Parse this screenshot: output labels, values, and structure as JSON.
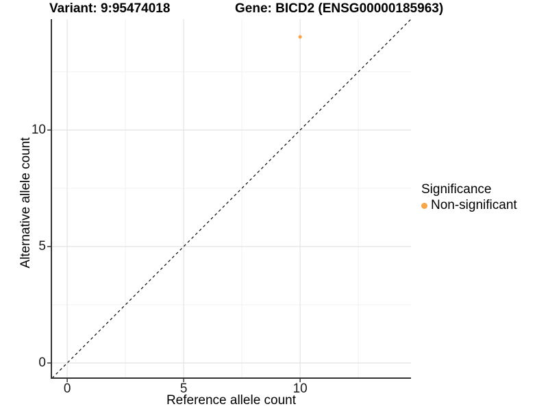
{
  "titles": {
    "variant": "Variant: 9:95474018",
    "gene": "Gene: BICD2 (ENSG00000185963)"
  },
  "legend": {
    "title": "Significance",
    "items": [
      {
        "label": "Non-significant",
        "color": "#F8A546"
      }
    ]
  },
  "chart_data": {
    "type": "scatter",
    "title": "Variant: 9:95474018  /  Gene: BICD2 (ENSG00000185963)",
    "xlabel": "Reference allele count",
    "ylabel": "Alternative allele count",
    "xlim": [
      -0.68,
      14.76
    ],
    "ylim": [
      -0.65,
      14.76
    ],
    "x_ticks": [
      0,
      5,
      10
    ],
    "y_ticks": [
      0,
      5,
      10
    ],
    "x_minor_ticks": [
      2.5,
      7.5,
      12.5
    ],
    "y_minor_ticks": [
      2.5,
      7.5,
      12.5
    ],
    "grid": true,
    "legend_position": "right",
    "series": [
      {
        "name": "Non-significant",
        "color": "#F8A546",
        "points": [
          {
            "x": 10,
            "y": 14
          }
        ]
      }
    ],
    "reference_line": {
      "type": "identity",
      "slope": 1,
      "intercept": 0,
      "style": "dashed",
      "color": "#000000"
    }
  },
  "style": {
    "major_grid_color": "#E3E3E3",
    "minor_grid_color": "#F1F1F1",
    "axis_line_color": "#333333",
    "tick_color": "#333333",
    "point_color": "#F8A546"
  }
}
